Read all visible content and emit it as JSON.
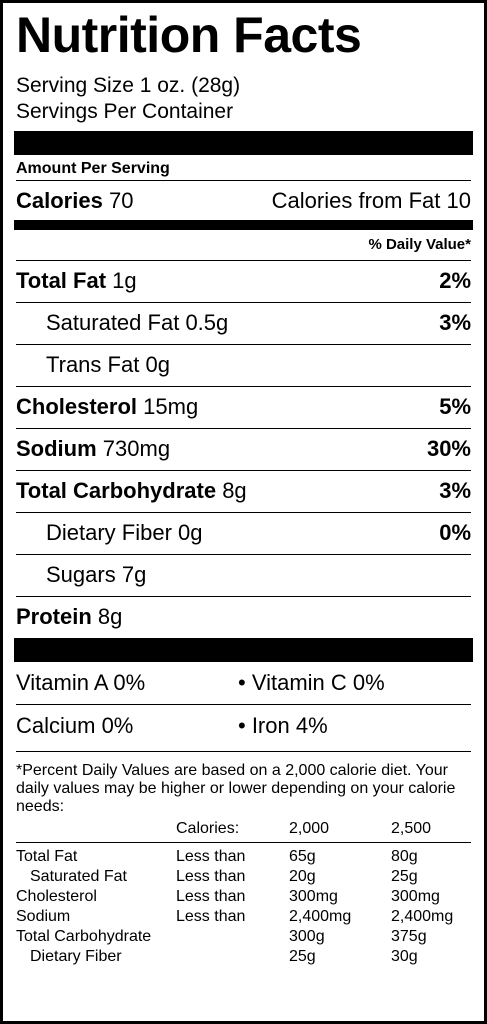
{
  "title": "Nutrition Facts",
  "serving_size": "Serving Size 1 oz. (28g)",
  "servings_per_container": "Servings Per Container",
  "amount_per_serving": "Amount Per Serving",
  "calories": {
    "label": "Calories",
    "value": "70",
    "from_fat_label": "Calories from Fat",
    "from_fat_value": "10"
  },
  "daily_value_header": "% Daily Value*",
  "nutrients": [
    {
      "name": "Total Fat",
      "amount": "1g",
      "dv": "2%"
    },
    {
      "name": "Saturated Fat",
      "amount": "0.5g",
      "dv": "3%"
    },
    {
      "name": "Trans Fat",
      "amount": "0g",
      "dv": ""
    },
    {
      "name": "Cholesterol",
      "amount": "15mg",
      "dv": "5%"
    },
    {
      "name": "Sodium",
      "amount": "730mg",
      "dv": "30%"
    },
    {
      "name": "Total Carbohydrate",
      "amount": "8g",
      "dv": "3%"
    },
    {
      "name": "Dietary Fiber",
      "amount": "0g",
      "dv": "0%"
    },
    {
      "name": "Sugars",
      "amount": "7g",
      "dv": ""
    },
    {
      "name": "Protein",
      "amount": "8g",
      "dv": ""
    }
  ],
  "vitamins": [
    {
      "left": "Vitamin A 0%",
      "right": "• Vitamin C 0%"
    },
    {
      "left": "Calcium 0%",
      "right": "• Iron 4%"
    }
  ],
  "footnote": "*Percent Daily Values are based on a 2,000 calorie diet. Your daily values may be higher or lower depending on your calorie needs:",
  "footer_table": {
    "calories_label": "Calories:",
    "col_2000": "2,000",
    "col_2500": "2,500",
    "rows": [
      {
        "name": "Total Fat",
        "qual": "Less than",
        "v1": "65g",
        "v2": "80g"
      },
      {
        "name": "Saturated Fat",
        "qual": "Less than",
        "v1": "20g",
        "v2": "25g"
      },
      {
        "name": "Cholesterol",
        "qual": "Less than",
        "v1": "300mg",
        "v2": "300mg"
      },
      {
        "name": "Sodium",
        "qual": "Less than",
        "v1": "2,400mg",
        "v2": "2,400mg"
      },
      {
        "name": "Total Carbohydrate",
        "qual": "",
        "v1": "300g",
        "v2": "375g"
      },
      {
        "name": "Dietary Fiber",
        "qual": "",
        "v1": "25g",
        "v2": "30g"
      }
    ]
  }
}
